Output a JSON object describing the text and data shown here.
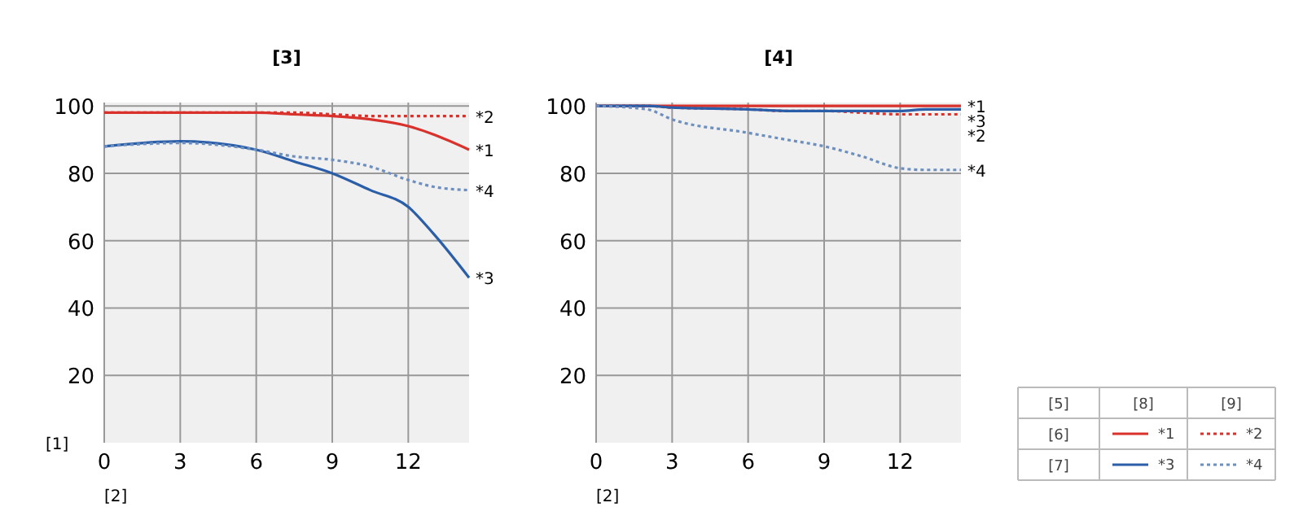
{
  "chart_data": [
    {
      "type": "line",
      "title": "[3]",
      "xlabel": "[2]",
      "ylabel": "[1]",
      "xlim": [
        0,
        14.4
      ],
      "xticks": [
        0,
        3,
        6,
        9,
        12
      ],
      "ylim": [
        0,
        101
      ],
      "yticks": [
        20,
        40,
        60,
        80,
        100
      ],
      "grid": true,
      "legend": false,
      "x": [
        0,
        3,
        6,
        7.5,
        9,
        10.5,
        12,
        13,
        14.4
      ],
      "series": [
        {
          "name": "*1",
          "color": "#d9312b",
          "line_style": "solid",
          "values": [
            98,
            98,
            98,
            97.5,
            97,
            96,
            94,
            91.5,
            87
          ]
        },
        {
          "name": "*2",
          "color": "#d9312b",
          "line_style": "dotted",
          "values": [
            98,
            98,
            98,
            98,
            97.5,
            97,
            97,
            97,
            97
          ]
        },
        {
          "name": "*3",
          "color": "#2b5ea8",
          "line_style": "solid",
          "values": [
            88,
            89.5,
            87,
            83.5,
            80,
            75,
            70,
            62,
            49
          ]
        },
        {
          "name": "*4",
          "color": "#6d8fc0",
          "line_style": "dotted",
          "values": [
            88,
            89,
            87,
            85,
            84,
            82,
            78,
            76,
            75
          ]
        }
      ]
    },
    {
      "type": "line",
      "title": "[4]",
      "xlabel": "[2]",
      "xlim": [
        0,
        14.4
      ],
      "xticks": [
        0,
        3,
        6,
        9,
        12
      ],
      "ylim": [
        0,
        101
      ],
      "yticks": [
        20,
        40,
        60,
        80,
        100
      ],
      "grid": true,
      "legend": "right",
      "annotations": [
        "[5]",
        "[6]",
        "[7]",
        "[8]",
        "[9]"
      ],
      "x": [
        0,
        2,
        3,
        6,
        7.5,
        9,
        10.5,
        12,
        13,
        14.4
      ],
      "series": [
        {
          "name": "*1",
          "color": "#d9312b",
          "line_style": "solid",
          "values": [
            100,
            100,
            100,
            100,
            100,
            100,
            100,
            100,
            100,
            100
          ]
        },
        {
          "name": "*2",
          "color": "#d9312b",
          "line_style": "dotted",
          "values": [
            100,
            100,
            99.5,
            99,
            98.5,
            98.5,
            98,
            97.5,
            97.5,
            97.5
          ]
        },
        {
          "name": "*3",
          "color": "#2b5ea8",
          "line_style": "solid",
          "values": [
            100,
            100,
            99.5,
            99,
            98.5,
            98.5,
            98.5,
            98.5,
            99,
            99
          ]
        },
        {
          "name": "*4",
          "color": "#6d8fc0",
          "line_style": "dotted",
          "values": [
            100,
            99,
            96,
            92,
            90,
            88,
            85,
            81.5,
            81,
            81
          ]
        }
      ]
    }
  ]
}
